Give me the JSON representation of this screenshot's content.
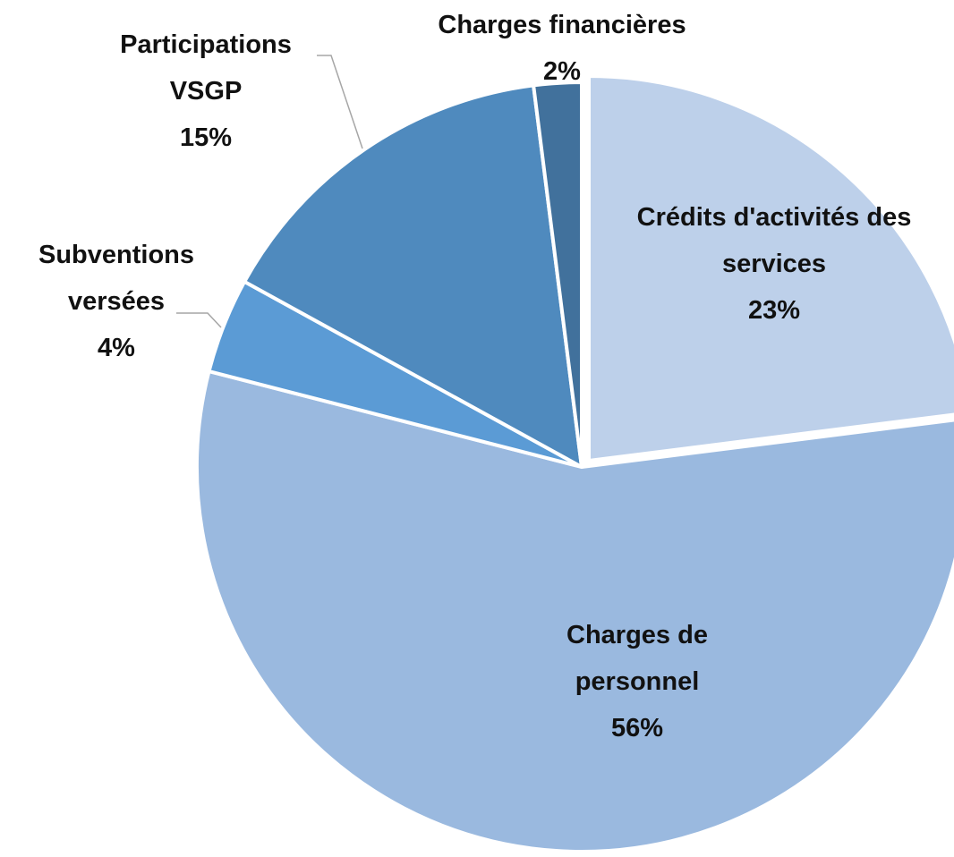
{
  "chart_data": {
    "type": "pie",
    "categories": [
      "Crédits d'activités des services",
      "Charges de personnel",
      "Subventions versées",
      "Participations VSGP",
      "Charges financières"
    ],
    "values": [
      23,
      56,
      4,
      15,
      2
    ],
    "value_labels": [
      "23%",
      "56%",
      "4%",
      "15%",
      "2%"
    ],
    "colors": [
      "#bdd0ea",
      "#9ab9df",
      "#5b9bd5",
      "#4f8abe",
      "#41719c"
    ]
  }
}
